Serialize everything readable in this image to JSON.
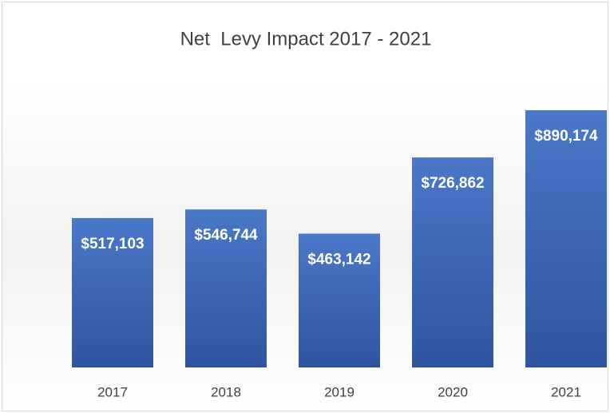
{
  "chart_data": {
    "type": "bar",
    "title": "Net  Levy Impact 2017 - 2021",
    "categories": [
      "2017",
      "2018",
      "2019",
      "2020",
      "2021"
    ],
    "values": [
      517103,
      546744,
      463142,
      726862,
      890174
    ],
    "value_labels": [
      "$517,103",
      "$546,744",
      "$463,142",
      "$726,862",
      "$890,174"
    ],
    "color": "#4472c4"
  }
}
